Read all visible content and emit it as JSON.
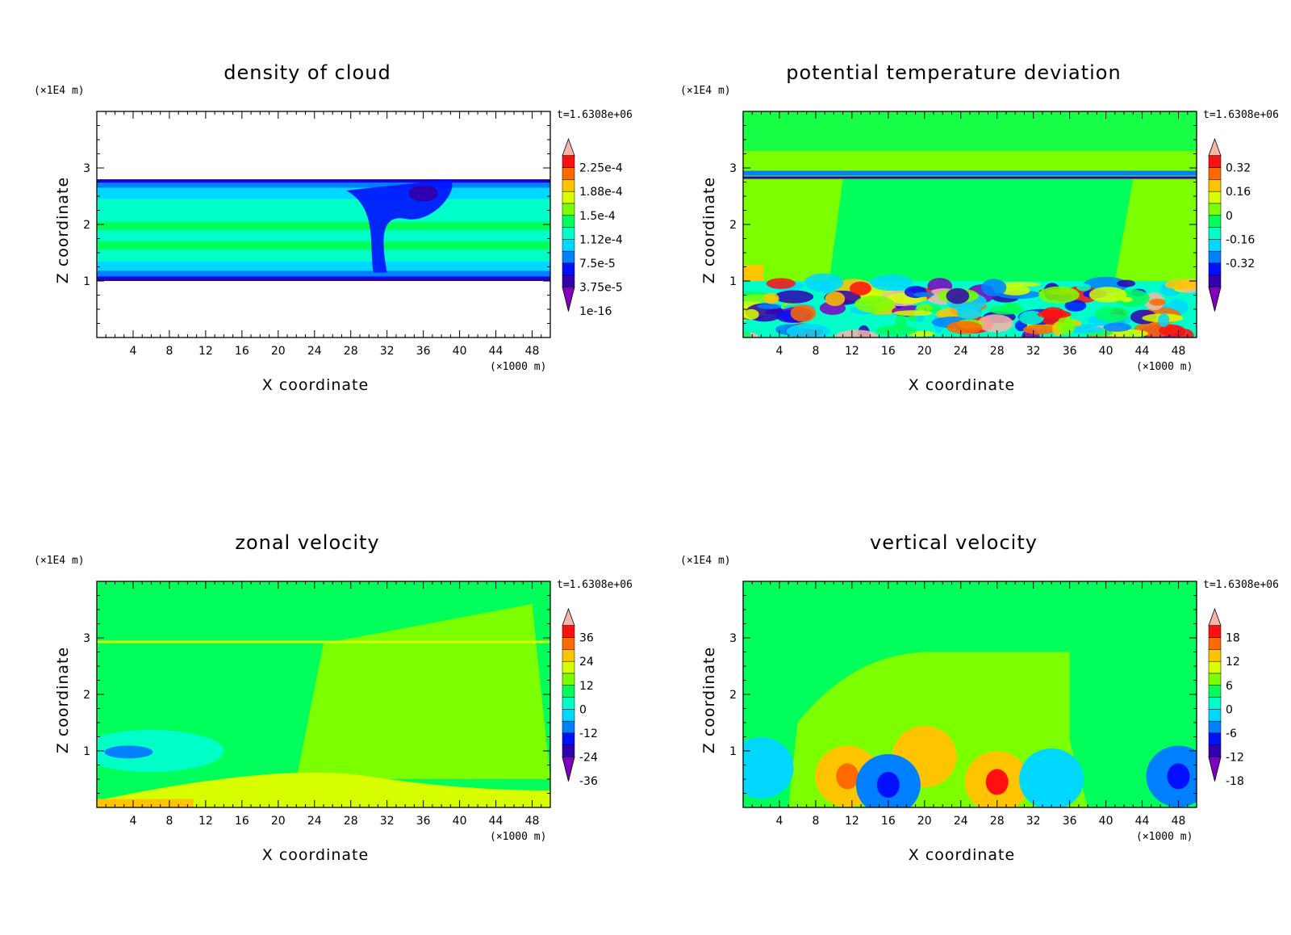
{
  "figure": {
    "time_label": "t=1.6308e+06",
    "x_axis_label": "X coordinate",
    "z_axis_label": "Z coordinate",
    "x_unit_label": "(×1000 m)",
    "z_unit_label": "(×1E4 m)"
  },
  "chart_data": [
    {
      "type": "heatmap",
      "title": "density of cloud",
      "xlabel": "X coordinate",
      "ylabel": "Z coordinate",
      "x_ticks": [
        4,
        8,
        12,
        16,
        20,
        24,
        28,
        32,
        36,
        40,
        44,
        48
      ],
      "y_ticks": [
        1,
        2,
        3
      ],
      "xlim": [
        0,
        50
      ],
      "ylim": [
        0,
        4
      ],
      "colorbar_labels": [
        "2.25e-4",
        "1.88e-4",
        "1.5e-4",
        "1.12e-4",
        "7.5e-5",
        "3.75e-5",
        "1e-16"
      ],
      "colorbar_colors": [
        "#f7b4a8",
        "#ff1010",
        "#ff6a00",
        "#ffc400",
        "#d8ff00",
        "#7cff00",
        "#00ff5a",
        "#00ffc8",
        "#00d8ff",
        "#0080ff",
        "#0010ff",
        "#3000b0",
        "#8000c0"
      ],
      "cloud_layer_z": [
        1.0,
        2.8
      ],
      "description_visible": "cloud layer between z≈1 and z≈2.8"
    },
    {
      "type": "heatmap",
      "title": "potential temperature deviation",
      "xlabel": "X coordinate",
      "ylabel": "Z coordinate",
      "x_ticks": [
        4,
        8,
        12,
        16,
        20,
        24,
        28,
        32,
        36,
        40,
        44,
        48
      ],
      "y_ticks": [
        1,
        2,
        3
      ],
      "xlim": [
        0,
        50
      ],
      "ylim": [
        0,
        4
      ],
      "colorbar_labels": [
        "0.32",
        "0.16",
        "0",
        "-0.16",
        "-0.32"
      ],
      "colorbar_colors": [
        "#f7b4a8",
        "#ff1010",
        "#ff6a00",
        "#ffc400",
        "#d8ff00",
        "#7cff00",
        "#00ff5a",
        "#00ffc8",
        "#00d8ff",
        "#0080ff",
        "#0010ff",
        "#3000b0",
        "#8000c0"
      ]
    },
    {
      "type": "heatmap",
      "title": "zonal velocity",
      "xlabel": "X coordinate",
      "ylabel": "Z coordinate",
      "x_ticks": [
        4,
        8,
        12,
        16,
        20,
        24,
        28,
        32,
        36,
        40,
        44,
        48
      ],
      "y_ticks": [
        1,
        2,
        3
      ],
      "xlim": [
        0,
        50
      ],
      "ylim": [
        0,
        4
      ],
      "colorbar_labels": [
        "36",
        "24",
        "12",
        "0",
        "-12",
        "-24",
        "-36"
      ],
      "colorbar_colors": [
        "#f7b4a8",
        "#ff1010",
        "#ff6a00",
        "#ffc400",
        "#d8ff00",
        "#7cff00",
        "#00ff5a",
        "#00ffc8",
        "#00d8ff",
        "#0080ff",
        "#0010ff",
        "#3000b0",
        "#8000c0"
      ]
    },
    {
      "type": "heatmap",
      "title": "vertical velocity",
      "xlabel": "X coordinate",
      "ylabel": "Z coordinate",
      "x_ticks": [
        4,
        8,
        12,
        16,
        20,
        24,
        28,
        32,
        36,
        40,
        44,
        48
      ],
      "y_ticks": [
        1,
        2,
        3
      ],
      "xlim": [
        0,
        50
      ],
      "ylim": [
        0,
        4
      ],
      "colorbar_labels": [
        "18",
        "12",
        "6",
        "0",
        "-6",
        "-12",
        "-18"
      ],
      "colorbar_colors": [
        "#f7b4a8",
        "#ff1010",
        "#ff6a00",
        "#ffc400",
        "#d8ff00",
        "#7cff00",
        "#00ff5a",
        "#00ffc8",
        "#00d8ff",
        "#0080ff",
        "#0010ff",
        "#3000b0",
        "#8000c0"
      ]
    }
  ]
}
